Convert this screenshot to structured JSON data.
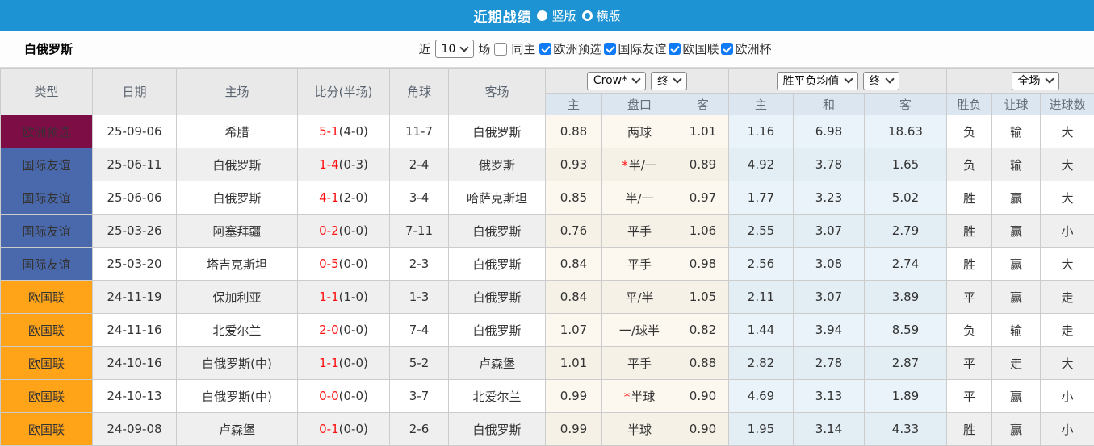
{
  "topbar": {
    "title": "近期战绩",
    "radio_vertical": "竖版",
    "radio_horizontal": "横版"
  },
  "filter": {
    "team": "白俄罗斯",
    "recent_label": "近",
    "recent_value": "10",
    "matches_label": "场",
    "same_home_label": "同主",
    "competitions": [
      "欧洲预选",
      "国际友谊",
      "欧国联",
      "欧洲杯"
    ]
  },
  "table": {
    "columns": {
      "type": "类型",
      "date": "日期",
      "home": "主场",
      "score": "比分(半场)",
      "corner": "角球",
      "away": "客场"
    },
    "odds_group": {
      "company": "Crow*",
      "period": "终",
      "sub": [
        "主",
        "盘口",
        "客"
      ]
    },
    "avg_group": {
      "label": "胜平负均值",
      "period": "终",
      "sub": [
        "主",
        "和",
        "客"
      ]
    },
    "result_group": {
      "scope": "全场",
      "sub": [
        "胜负",
        "让球",
        "进球数"
      ]
    },
    "rows": [
      {
        "type": "欧洲预选",
        "date": "25-09-06",
        "home": "希腊",
        "home_green": false,
        "score": "5-1",
        "half": "(4-0)",
        "corner": "11-7",
        "away": "白俄罗斯",
        "away_green": true,
        "odds_home": "0.88",
        "handicap": "两球",
        "handicap_star": false,
        "odds_away": "1.01",
        "avg_win": "1.16",
        "avg_draw": "6.98",
        "avg_lose": "18.63",
        "wdl": "负",
        "wdl_color": "green",
        "let": "输",
        "let_color": "green",
        "goal": "大",
        "goal_color": "red"
      },
      {
        "type": "国际友谊",
        "date": "25-06-11",
        "home": "白俄罗斯",
        "home_green": true,
        "score": "1-4",
        "half": "(0-3)",
        "corner": "2-4",
        "away": "俄罗斯",
        "away_green": false,
        "odds_home": "0.93",
        "handicap": "半/一",
        "handicap_star": true,
        "odds_away": "0.89",
        "avg_win": "4.92",
        "avg_draw": "3.78",
        "avg_lose": "1.65",
        "wdl": "负",
        "wdl_color": "green",
        "let": "输",
        "let_color": "green",
        "goal": "大",
        "goal_color": "red"
      },
      {
        "type": "国际友谊",
        "date": "25-06-06",
        "home": "白俄罗斯",
        "home_green": true,
        "score": "4-1",
        "half": "(2-0)",
        "corner": "3-4",
        "away": "哈萨克斯坦",
        "away_green": false,
        "odds_home": "0.85",
        "handicap": "半/一",
        "handicap_star": false,
        "odds_away": "0.97",
        "avg_win": "1.77",
        "avg_draw": "3.23",
        "avg_lose": "5.02",
        "wdl": "胜",
        "wdl_color": "red",
        "let": "赢",
        "let_color": "red",
        "goal": "大",
        "goal_color": "red"
      },
      {
        "type": "国际友谊",
        "date": "25-03-26",
        "home": "阿塞拜疆",
        "home_green": false,
        "score": "0-2",
        "half": "(0-0)",
        "corner": "7-11",
        "away": "白俄罗斯",
        "away_green": true,
        "odds_home": "0.76",
        "handicap": "平手",
        "handicap_star": false,
        "odds_away": "1.06",
        "avg_win": "2.55",
        "avg_draw": "3.07",
        "avg_lose": "2.79",
        "wdl": "胜",
        "wdl_color": "red",
        "let": "赢",
        "let_color": "red",
        "goal": "小",
        "goal_color": "green"
      },
      {
        "type": "国际友谊",
        "date": "25-03-20",
        "home": "塔吉克斯坦",
        "home_green": false,
        "score": "0-5",
        "half": "(0-0)",
        "corner": "2-3",
        "away": "白俄罗斯",
        "away_green": true,
        "odds_home": "0.84",
        "handicap": "平手",
        "handicap_star": false,
        "odds_away": "0.98",
        "avg_win": "2.56",
        "avg_draw": "3.08",
        "avg_lose": "2.74",
        "wdl": "胜",
        "wdl_color": "red",
        "let": "赢",
        "let_color": "red",
        "goal": "大",
        "goal_color": "red"
      },
      {
        "type": "欧国联",
        "date": "24-11-19",
        "home": "保加利亚",
        "home_green": false,
        "score": "1-1",
        "half": "(1-0)",
        "corner": "1-3",
        "away": "白俄罗斯",
        "away_green": true,
        "odds_home": "0.84",
        "handicap": "平/半",
        "handicap_star": false,
        "odds_away": "1.05",
        "avg_win": "2.11",
        "avg_draw": "3.07",
        "avg_lose": "3.89",
        "wdl": "平",
        "wdl_color": "blue",
        "let": "赢",
        "let_color": "red",
        "goal": "走",
        "goal_color": "blue"
      },
      {
        "type": "欧国联",
        "date": "24-11-16",
        "home": "北爱尔兰",
        "home_green": false,
        "score": "2-0",
        "half": "(0-0)",
        "corner": "7-4",
        "away": "白俄罗斯",
        "away_green": true,
        "odds_home": "1.07",
        "handicap": "一/球半",
        "handicap_star": false,
        "odds_away": "0.82",
        "avg_win": "1.44",
        "avg_draw": "3.94",
        "avg_lose": "8.59",
        "wdl": "负",
        "wdl_color": "green",
        "let": "输",
        "let_color": "green",
        "goal": "走",
        "goal_color": "blue"
      },
      {
        "type": "欧国联",
        "date": "24-10-16",
        "home": "白俄罗斯(中)",
        "home_green": true,
        "score": "1-1",
        "half": "(0-0)",
        "corner": "5-2",
        "away": "卢森堡",
        "away_green": false,
        "odds_home": "1.01",
        "handicap": "平手",
        "handicap_star": false,
        "odds_away": "0.88",
        "avg_win": "2.82",
        "avg_draw": "2.78",
        "avg_lose": "2.87",
        "wdl": "平",
        "wdl_color": "blue",
        "let": "走",
        "let_color": "blue",
        "goal": "大",
        "goal_color": "red"
      },
      {
        "type": "欧国联",
        "date": "24-10-13",
        "home": "白俄罗斯(中)",
        "home_green": true,
        "score": "0-0",
        "half": "(0-0)",
        "corner": "3-7",
        "away": "北爱尔兰",
        "away_green": false,
        "odds_home": "0.99",
        "handicap": "半球",
        "handicap_star": true,
        "odds_away": "0.90",
        "avg_win": "4.69",
        "avg_draw": "3.13",
        "avg_lose": "1.89",
        "wdl": "平",
        "wdl_color": "blue",
        "let": "赢",
        "let_color": "red",
        "goal": "小",
        "goal_color": "green"
      },
      {
        "type": "欧国联",
        "date": "24-09-08",
        "home": "卢森堡",
        "home_green": false,
        "score": "0-1",
        "half": "(0-0)",
        "corner": "2-6",
        "away": "白俄罗斯",
        "away_green": true,
        "odds_home": "0.99",
        "handicap": "半球",
        "handicap_star": false,
        "odds_away": "0.90",
        "avg_win": "1.95",
        "avg_draw": "3.14",
        "avg_lose": "4.33",
        "wdl": "胜",
        "wdl_color": "red",
        "let": "赢",
        "let_color": "red",
        "goal": "小",
        "goal_color": "green"
      }
    ]
  },
  "colors": {
    "topbar_bg": "#1e93d3",
    "header_cell_bg": "#dce6f0",
    "group_row_bg": "#e9e9e9",
    "row_alt_bg": "#efefef",
    "crow_col_bg": "#fcf8ef",
    "crow_col_alt_bg": "#f5f1e7",
    "avg_col_bg": "#e9f3f9",
    "avg_col_alt_bg": "#e3edf4",
    "score_red": "#ff0f0f",
    "result_red": "#f16868",
    "result_green": "#56a166",
    "result_blue": "#3d3dd8",
    "checkbox_blue": "#0f7af5",
    "type_colors": {
      "欧洲预选": "#7c0d45",
      "国际友谊": "#4a69ad",
      "欧国联": "#ffa318"
    }
  }
}
